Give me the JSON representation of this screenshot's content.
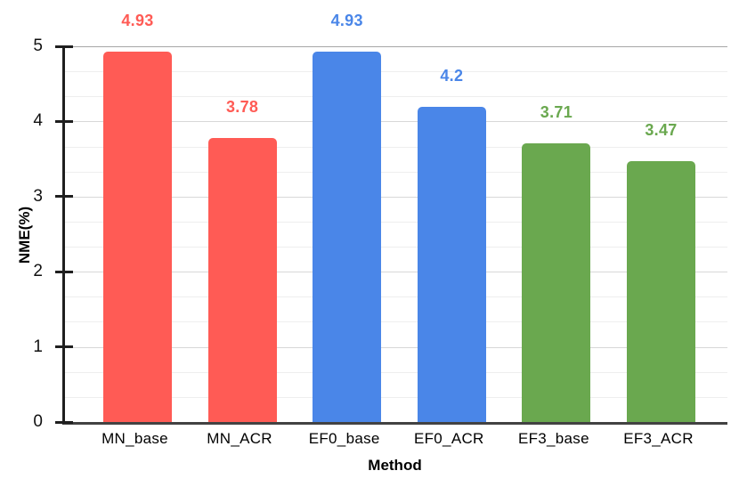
{
  "chart_data": {
    "type": "bar",
    "title": "",
    "categories": [
      "MN_base",
      "MN_ACR",
      "EF0_base",
      "EF0_ACR",
      "EF3_base",
      "EF3_ACR"
    ],
    "values": [
      4.93,
      3.78,
      4.93,
      4.2,
      3.71,
      3.47
    ],
    "value_labels": [
      "4.93",
      "3.78",
      "4.93",
      "4.2",
      "3.71",
      "3.47"
    ],
    "bar_colors": [
      "#ff5b55",
      "#ff5b55",
      "#4a86e8",
      "#4a86e8",
      "#6aa84f",
      "#6aa84f"
    ],
    "xlabel": "Method",
    "ylabel": "NME(%)",
    "ylim": [
      0,
      5
    ],
    "y_ticks": [
      "0",
      "1",
      "2",
      "3",
      "4",
      "5"
    ],
    "grid": {
      "major_step": 1,
      "minor_divisions_per_unit": 3,
      "grid_on": true
    },
    "legend_position": "none"
  },
  "colors": {
    "series_red": "#ff5b55",
    "series_blue": "#4a86e8",
    "series_green": "#6aa84f",
    "axis_line": "#1f1f1f",
    "baseline": "#424242",
    "grid_minor": "#eeeeee",
    "grid_major": "#d8d8d8",
    "grid_top": "#a6a6a6",
    "text": "#000000",
    "background": "#ffffff"
  }
}
